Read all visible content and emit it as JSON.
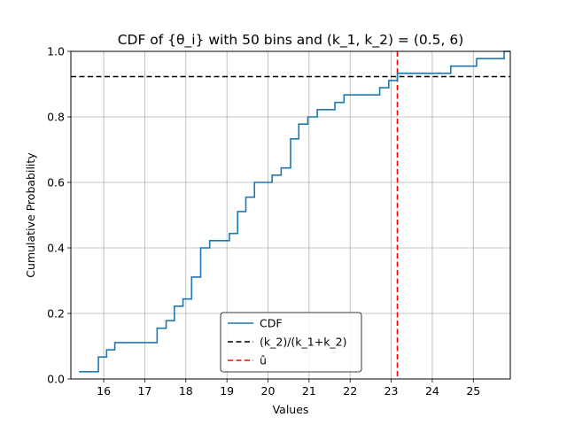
{
  "chart_data": {
    "type": "line",
    "title": "CDF of {θ_i} with 50 bins and (k_1, k_2) = (0.5, 6)",
    "xlabel": "Values",
    "ylabel": "Cumulative Probability",
    "xlim": [
      15.2,
      25.9
    ],
    "ylim": [
      0.0,
      1.0
    ],
    "x_ticks": [
      16,
      17,
      18,
      19,
      20,
      21,
      22,
      23,
      24,
      25
    ],
    "y_ticks": [
      0.0,
      0.2,
      0.4,
      0.6,
      0.8,
      1.0
    ],
    "x_tick_labels": [
      "16",
      "17",
      "18",
      "19",
      "20",
      "21",
      "22",
      "23",
      "24",
      "25"
    ],
    "y_tick_labels": [
      "0.0",
      "0.2",
      "0.4",
      "0.6",
      "0.8",
      "1.0"
    ],
    "grid": true,
    "legend_position": "lower-center",
    "series": [
      {
        "name": "CDF",
        "kind": "step",
        "color": "#1f77b4",
        "x": [
          15.4,
          15.87,
          16.07,
          16.27,
          17.3,
          17.52,
          17.72,
          17.93,
          18.14,
          18.36,
          18.58,
          19.06,
          19.26,
          19.46,
          19.67,
          20.1,
          20.32,
          20.55,
          20.75,
          20.97,
          21.2,
          21.63,
          21.85,
          22.72,
          22.94,
          23.15,
          24.45,
          25.08,
          25.75
        ],
        "y": [
          0.022,
          0.067,
          0.089,
          0.111,
          0.155,
          0.178,
          0.222,
          0.244,
          0.311,
          0.4,
          0.422,
          0.444,
          0.511,
          0.555,
          0.6,
          0.622,
          0.644,
          0.733,
          0.778,
          0.8,
          0.822,
          0.844,
          0.867,
          0.889,
          0.911,
          0.933,
          0.955,
          0.978,
          1.0
        ]
      },
      {
        "name": "(k_2)/(k_1+k_2)",
        "kind": "hline",
        "color": "#000000",
        "y": 0.923
      },
      {
        "name": "û",
        "kind": "vline",
        "color": "#ff0000",
        "x": 23.15
      }
    ]
  }
}
